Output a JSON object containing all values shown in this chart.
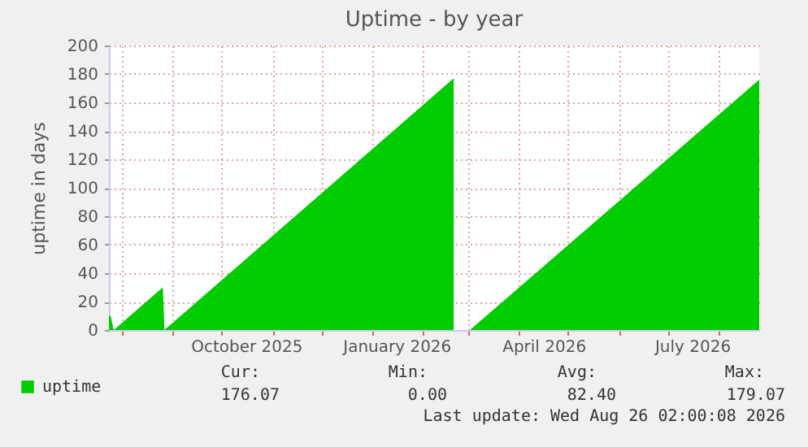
{
  "chart_data": {
    "type": "area",
    "title": "Uptime - by year",
    "ylabel": "uptime in days",
    "x": [
      "2025-07-24",
      "2025-07-25",
      "2025-07-27",
      "2025-08-26",
      "2025-08-27",
      "2026-02-20",
      "2026-02-21",
      "2026-03-02",
      "2026-08-26"
    ],
    "series": [
      {
        "name": "uptime",
        "color": "#00cc00",
        "values": [
          10,
          10,
          0,
          30,
          0,
          177,
          null,
          0,
          176
        ]
      }
    ],
    "xlim": [
      "2025-07-24",
      "2026-08-26"
    ],
    "xticks": [
      {
        "value": "2025-08-01",
        "label": null
      },
      {
        "value": "2025-09-01",
        "label": null
      },
      {
        "value": "2025-10-01",
        "label": null
      },
      {
        "value": "2025-11-01",
        "label": null
      },
      {
        "value": "2025-12-01",
        "label": null
      },
      {
        "value": "2026-01-01",
        "label": null
      },
      {
        "value": "2026-02-01",
        "label": null
      },
      {
        "value": "2026-03-01",
        "label": null
      },
      {
        "value": "2026-04-01",
        "label": null
      },
      {
        "value": "2026-05-01",
        "label": null
      },
      {
        "value": "2026-06-01",
        "label": null
      },
      {
        "value": "2026-07-01",
        "label": null
      },
      {
        "value": "2026-08-01",
        "label": null
      },
      {
        "value": "2025-10-16",
        "label": "October 2025"
      },
      {
        "value": "2026-01-16",
        "label": "January 2026"
      },
      {
        "value": "2026-04-16",
        "label": "April 2026"
      },
      {
        "value": "2026-07-16",
        "label": "July 2026"
      }
    ],
    "ylim": [
      0,
      200
    ],
    "yticks": [
      0,
      20,
      40,
      60,
      80,
      100,
      120,
      140,
      160,
      180,
      200
    ],
    "grid": true,
    "legend": "bottom left",
    "annotations": [
      "Cur:",
      "Min:",
      "Avg:",
      "Max:",
      "176.07",
      "0.00",
      "82.40",
      "179.07",
      "Last update: Wed Aug 26 02:00:08 2026"
    ]
  }
}
